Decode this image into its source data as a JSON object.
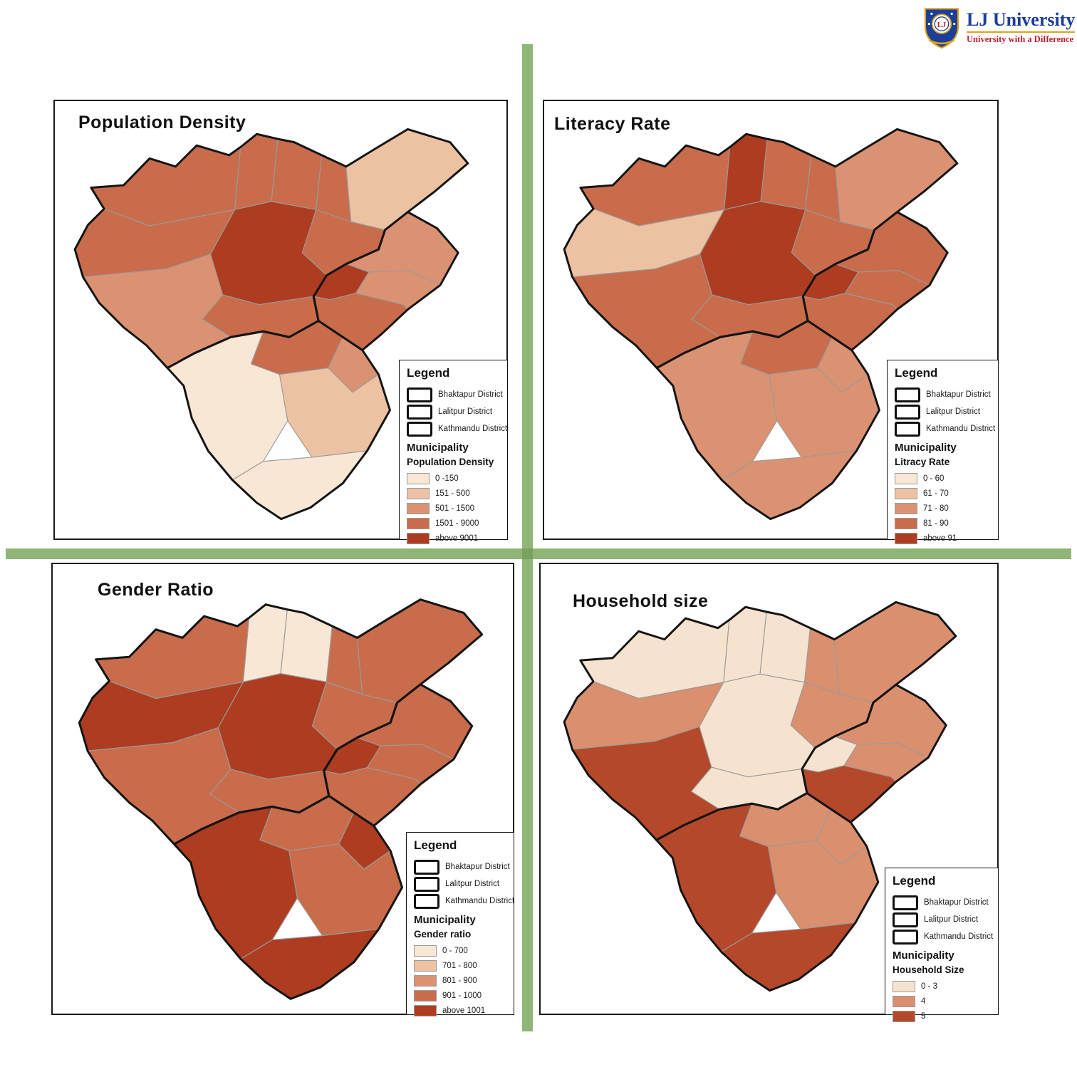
{
  "logo": {
    "title": "LJ University",
    "subtitle": "University with a Difference"
  },
  "colors": {
    "divider": "#8FB577",
    "divider_cross": "#7AA25F",
    "logo_blue": "#1C3D99",
    "logo_red": "#C41E2F",
    "logo_gold": "#D9A51E",
    "district_outline": "#141414",
    "municipal_border": "#9a9a9a"
  },
  "legend": {
    "heading": "Legend",
    "districts": [
      "Bhaktapur District",
      "Lalitpur District",
      "Kathmandu District"
    ],
    "municipality_label": "Municipality"
  },
  "maps": [
    {
      "id": "population-density",
      "title": "Population Density",
      "metric_label": "Population Density",
      "classes": [
        {
          "label": "0 -150",
          "color": "#F8E7D4"
        },
        {
          "label": "151 - 500",
          "color": "#EDC2A2"
        },
        {
          "label": "501 - 1500",
          "color": "#DB9273"
        },
        {
          "label": "1501 - 9000",
          "color": "#C96C4C"
        },
        {
          "label": "above 9001",
          "color": "#AE3C20"
        }
      ],
      "region_classes": {
        "tarakeshwar": 4,
        "tokha": 4,
        "budhanilkantha": 4,
        "gokarneshwar": 4,
        "shankharapur": 2,
        "kageshwari": 4,
        "nagarjun": 4,
        "kathmandu": 5,
        "kirtipur": 4,
        "chandragiri": 3,
        "changunarayan": 3,
        "madhyapur_thimi": 5,
        "bhaktapur": 3,
        "suryabinayak": 4,
        "lalitpur_metro": 4,
        "mahalaxmi": 3,
        "godawari": 2,
        "bagmati": 1,
        "konjyosom": 1
      }
    },
    {
      "id": "literacy-rate",
      "title": "Literacy Rate",
      "metric_label": "Litracy Rate",
      "classes": [
        {
          "label": "0 - 60",
          "color": "#F8E7D4"
        },
        {
          "label": "61 - 70",
          "color": "#EDC2A2"
        },
        {
          "label": "71 - 80",
          "color": "#DB9273"
        },
        {
          "label": "81 - 90",
          "color": "#C96C4C"
        },
        {
          "label": "above 91",
          "color": "#AE3C20"
        }
      ],
      "region_classes": {
        "tarakeshwar": 4,
        "tokha": 5,
        "budhanilkantha": 4,
        "gokarneshwar": 4,
        "shankharapur": 3,
        "kageshwari": 4,
        "nagarjun": 2,
        "kathmandu": 5,
        "kirtipur": 4,
        "chandragiri": 4,
        "changunarayan": 4,
        "madhyapur_thimi": 5,
        "bhaktapur": 4,
        "suryabinayak": 4,
        "lalitpur_metro": 4,
        "mahalaxmi": 3,
        "godawari": 3,
        "bagmati": 3,
        "konjyosom": 3
      }
    },
    {
      "id": "gender-ratio",
      "title": "Gender Ratio",
      "metric_label": "Gender ratio",
      "classes": [
        {
          "label": "0 - 700",
          "color": "#F8E7D4"
        },
        {
          "label": "701 - 800",
          "color": "#EDC2A2"
        },
        {
          "label": "801 - 900",
          "color": "#DB9273"
        },
        {
          "label": "901 - 1000",
          "color": "#C96C4C"
        },
        {
          "label": "above 1001",
          "color": "#AE3C20"
        }
      ],
      "region_classes": {
        "tarakeshwar": 4,
        "tokha": 1,
        "budhanilkantha": 1,
        "gokarneshwar": 4,
        "shankharapur": 4,
        "kageshwari": 4,
        "nagarjun": 5,
        "kathmandu": 5,
        "kirtipur": 4,
        "chandragiri": 4,
        "changunarayan": 4,
        "madhyapur_thimi": 5,
        "bhaktapur": 4,
        "suryabinayak": 4,
        "lalitpur_metro": 4,
        "mahalaxmi": 5,
        "godawari": 4,
        "bagmati": 5,
        "konjyosom": 5
      }
    },
    {
      "id": "household-size",
      "title": "Household size",
      "metric_label": "Household Size",
      "classes": [
        {
          "label": "0 - 3",
          "color": "#F6E3CF"
        },
        {
          "label": "4",
          "color": "#DA8F6F"
        },
        {
          "label": "5",
          "color": "#B5482A"
        }
      ],
      "region_classes": {
        "tarakeshwar": 1,
        "tokha": 1,
        "budhanilkantha": 1,
        "gokarneshwar": 2,
        "shankharapur": 2,
        "kageshwari": 2,
        "nagarjun": 2,
        "kathmandu": 1,
        "kirtipur": 1,
        "chandragiri": 3,
        "changunarayan": 2,
        "madhyapur_thimi": 1,
        "bhaktapur": 2,
        "suryabinayak": 3,
        "lalitpur_metro": 2,
        "mahalaxmi": 2,
        "godawari": 2,
        "bagmati": 3,
        "konjyosom": 3
      }
    }
  ]
}
